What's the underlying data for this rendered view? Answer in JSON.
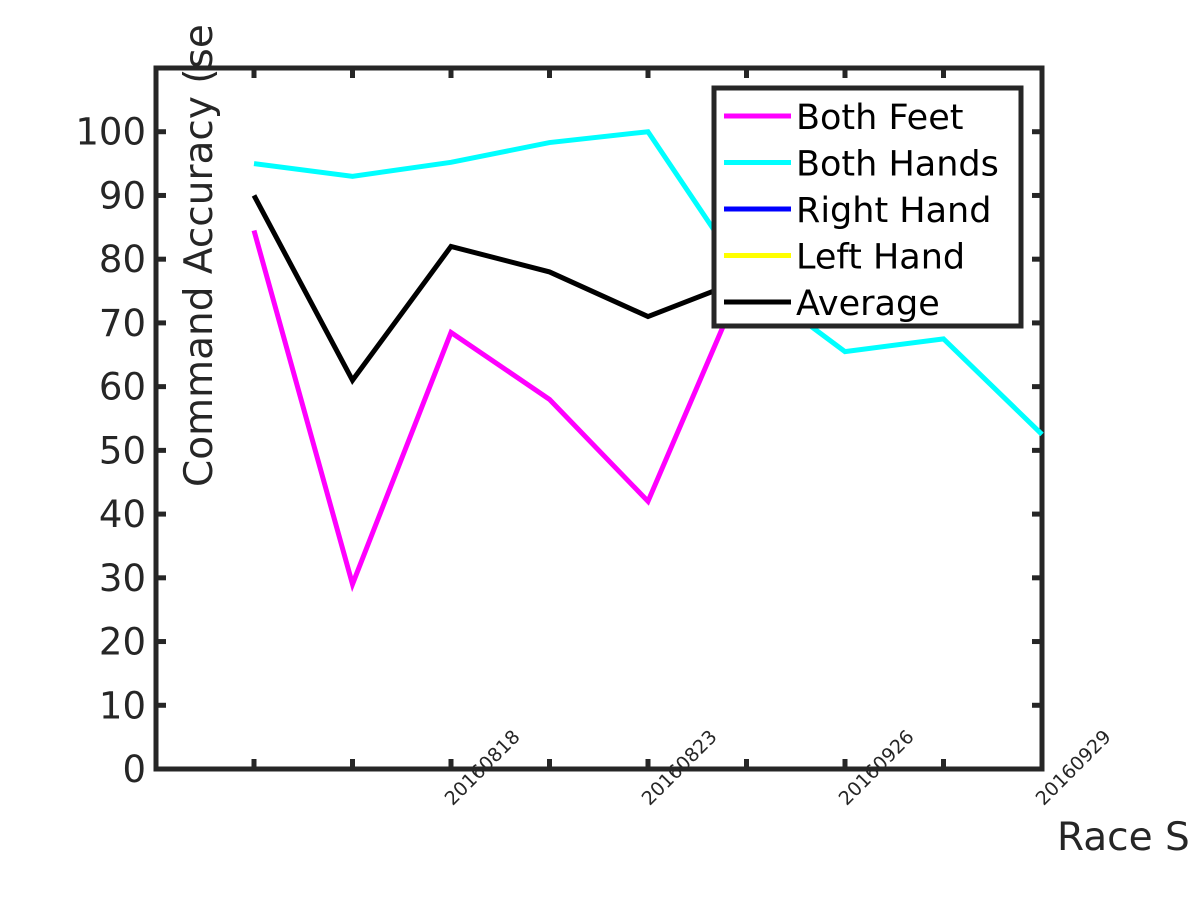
{
  "chart_data": {
    "type": "line",
    "ylabel": "Command Accuracy (se",
    "xlabel": "Race S",
    "ylim": [
      0,
      110
    ],
    "yticks": [
      0,
      10,
      20,
      30,
      40,
      50,
      60,
      70,
      80,
      90,
      100
    ],
    "x_tick_labels": [
      "20160818",
      "20160823",
      "20160926",
      "20160929"
    ],
    "legend_position": "top-right",
    "grid": false,
    "series": [
      {
        "name": "Both Feet",
        "color": "#ff00ff",
        "values": [
          84.5,
          29,
          68.5,
          58,
          42,
          78
        ]
      },
      {
        "name": "Both Hands",
        "color": "#00ffff",
        "values": [
          95,
          93,
          95.2,
          98.3,
          100,
          77,
          65.5,
          67.5,
          52.5
        ]
      },
      {
        "name": "Right Hand",
        "color": "#0000ff",
        "values": []
      },
      {
        "name": "Left Hand",
        "color": "#ffff00",
        "values": []
      },
      {
        "name": "Average",
        "color": "#000000",
        "values": [
          90,
          61,
          82,
          78,
          71,
          77
        ]
      }
    ]
  }
}
